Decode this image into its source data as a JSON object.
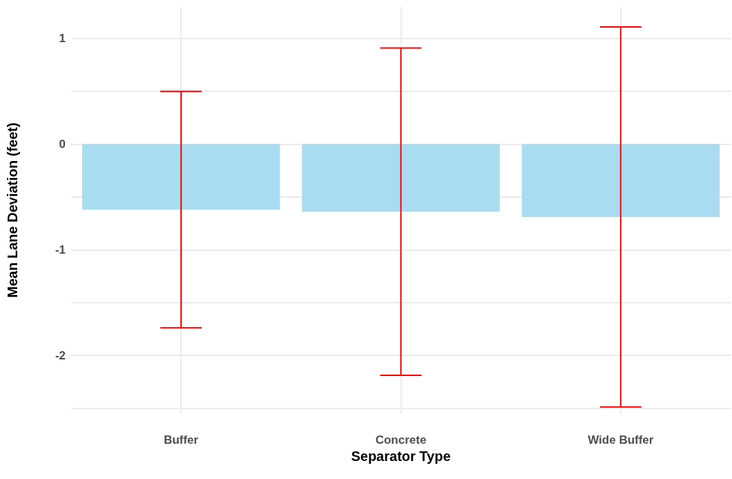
{
  "chart_data": {
    "type": "bar",
    "xlabel": "Separator Type",
    "ylabel": "Mean Lane Deviation (feet)",
    "categories": [
      "Buffer",
      "Concrete",
      "Wide Buffer"
    ],
    "values": [
      -0.62,
      -0.64,
      -0.69
    ],
    "color": "#aadcf1",
    "errors": [
      1.12,
      1.55,
      1.8
    ],
    "ylim": [
      -2.55,
      1.3
    ],
    "yticks": [
      {
        "value": -2.5,
        "label": null
      },
      -2,
      {
        "value": -1.5,
        "label": null
      },
      -1,
      {
        "value": -0.5,
        "label": null
      },
      0,
      {
        "value": 0.5,
        "label": null
      },
      1
    ],
    "grid": true
  }
}
